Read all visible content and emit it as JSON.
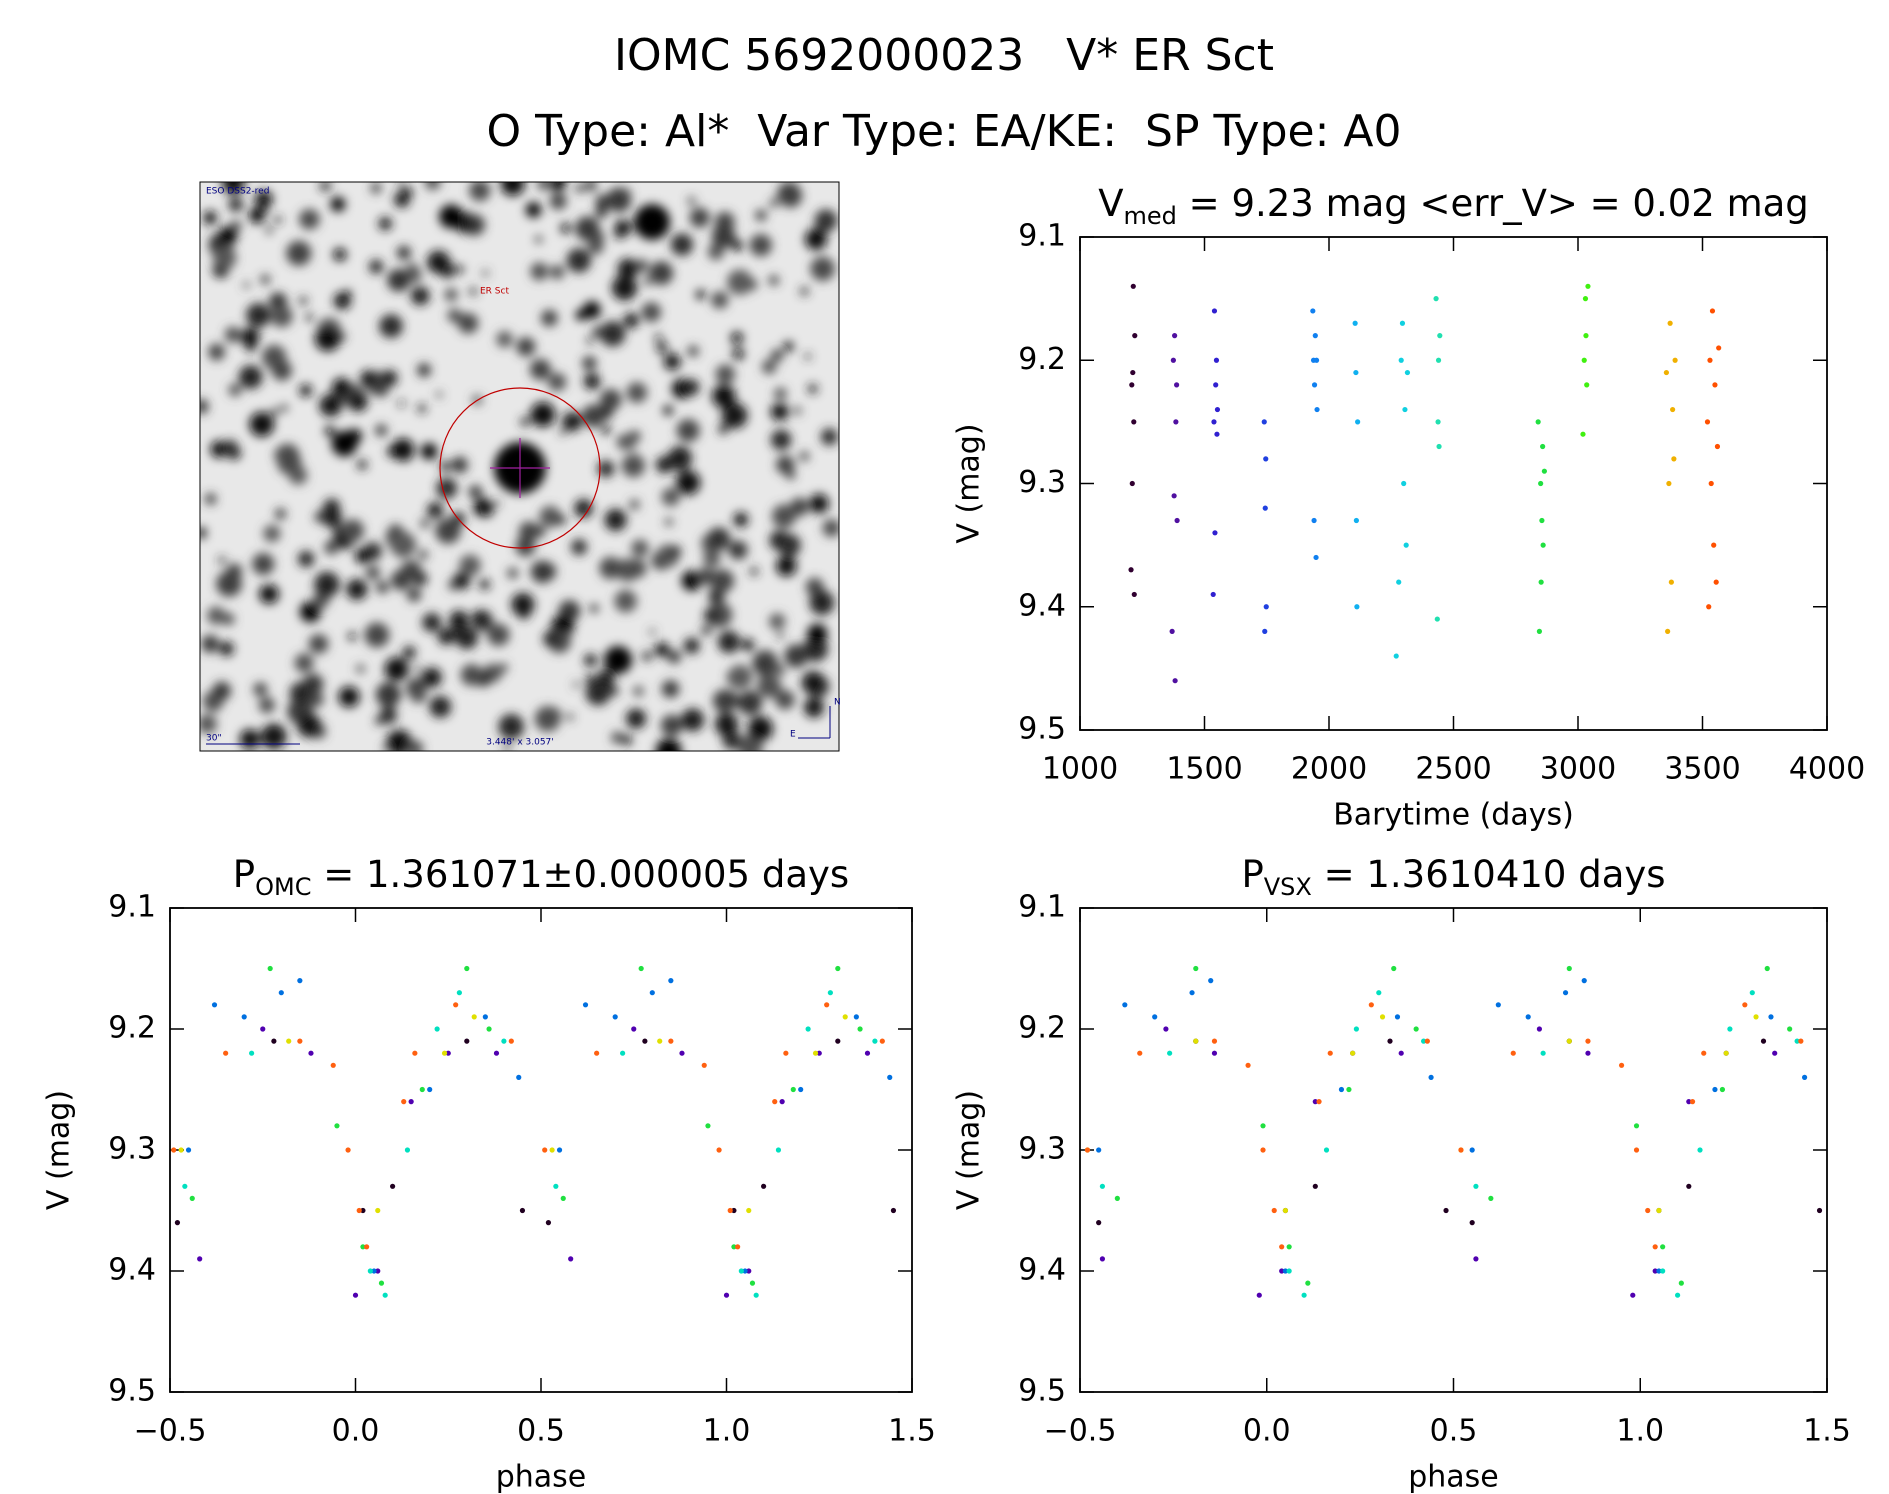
{
  "header": {
    "title": "IOMC 5692000023   V* ER Sct",
    "subtitle": "O Type: Al*  Var Type: EA/KE:  SP Type: A0"
  },
  "image": {
    "survey": "ESO DSS2-red",
    "target": "ER Sct",
    "scale": "30\"",
    "size": "3.448' x 3.057'",
    "north": "N",
    "east": "E"
  },
  "chart_data": [
    {
      "type": "scatter",
      "title": {
        "main": "V",
        "sub": "med",
        "rest": " = 9.23 mag <err_V> = 0.02 mag"
      },
      "xlabel": "Barytime (days)",
      "ylabel": "V (mag)",
      "xlim": [
        1000,
        4000
      ],
      "ylim": [
        9.5,
        9.1
      ],
      "xticks": [
        1000,
        1500,
        2000,
        2500,
        3000,
        3500,
        4000
      ],
      "yticks": [
        9.1,
        9.2,
        9.3,
        9.4,
        9.5
      ],
      "series": [
        {
          "color": "#300030",
          "x": [
            1205,
            1208,
            1210,
            1212,
            1214,
            1216,
            1218,
            1220
          ],
          "values": [
            9.37,
            9.22,
            9.3,
            9.21,
            9.14,
            9.25,
            9.39,
            9.18
          ]
        },
        {
          "color": "#5010a0",
          "x": [
            1370,
            1375,
            1378,
            1380,
            1382,
            1385,
            1388,
            1390
          ],
          "values": [
            9.42,
            9.2,
            9.31,
            9.18,
            9.46,
            9.25,
            9.22,
            9.33
          ]
        },
        {
          "color": "#3020d0",
          "x": [
            1535,
            1538,
            1540,
            1542,
            1545,
            1548,
            1550,
            1552
          ],
          "values": [
            9.39,
            9.25,
            9.16,
            9.34,
            9.22,
            9.2,
            9.26,
            9.24
          ]
        },
        {
          "color": "#2040e0",
          "x": [
            1740,
            1742,
            1744,
            1746,
            1748
          ],
          "values": [
            9.25,
            9.42,
            9.32,
            9.28,
            9.4
          ]
        },
        {
          "color": "#1080f0",
          "x": [
            1935,
            1938,
            1940,
            1942,
            1945,
            1948,
            1950,
            1952
          ],
          "values": [
            9.16,
            9.2,
            9.33,
            9.22,
            9.18,
            9.36,
            9.2,
            9.24
          ]
        },
        {
          "color": "#10b0f0",
          "x": [
            2105,
            2108,
            2110,
            2112,
            2115
          ],
          "values": [
            9.17,
            9.21,
            9.33,
            9.4,
            9.25
          ]
        },
        {
          "color": "#10d0e0",
          "x": [
            2270,
            2280,
            2290,
            2295,
            2300,
            2305,
            2310,
            2315
          ],
          "values": [
            9.44,
            9.38,
            9.2,
            9.17,
            9.3,
            9.24,
            9.35,
            9.21
          ]
        },
        {
          "color": "#20e0b0",
          "x": [
            2430,
            2435,
            2438,
            2440,
            2442,
            2445
          ],
          "values": [
            9.15,
            9.41,
            9.25,
            9.2,
            9.27,
            9.18
          ]
        },
        {
          "color": "#20e040",
          "x": [
            2840,
            2845,
            2850,
            2852,
            2855,
            2858,
            2860,
            2865
          ],
          "values": [
            9.25,
            9.42,
            9.3,
            9.38,
            9.33,
            9.27,
            9.35,
            9.29
          ]
        },
        {
          "color": "#40f010",
          "x": [
            3020,
            3025,
            3030,
            3032,
            3035,
            3040
          ],
          "values": [
            9.26,
            9.2,
            9.15,
            9.18,
            9.22,
            9.14
          ]
        },
        {
          "color": "#f0b000",
          "x": [
            3355,
            3360,
            3365,
            3370,
            3375,
            3380,
            3385,
            3390
          ],
          "values": [
            9.21,
            9.42,
            9.3,
            9.17,
            9.38,
            9.24,
            9.28,
            9.2
          ]
        },
        {
          "color": "#ff5000",
          "x": [
            3520,
            3525,
            3530,
            3535,
            3540,
            3545,
            3550,
            3555,
            3560,
            3565
          ],
          "values": [
            9.25,
            9.4,
            9.2,
            9.3,
            9.16,
            9.35,
            9.22,
            9.38,
            9.27,
            9.19
          ]
        }
      ]
    },
    {
      "type": "scatter",
      "title": {
        "main": "P",
        "sub": "OMC",
        "rest": " = 1.361071±0.000005 days"
      },
      "xlabel": "phase",
      "ylabel": "V (mag)",
      "xlim": [
        -0.5,
        1.5
      ],
      "ylim": [
        9.5,
        9.1
      ],
      "xticks": [
        {
          "value": -0.5,
          "label": "−0.5"
        },
        {
          "value": 0,
          "label": "0.0"
        },
        0.5,
        {
          "value": 1,
          "label": "1.0"
        },
        1.5
      ],
      "yticks": [
        9.1,
        9.2,
        9.3,
        9.4,
        9.5
      ],
      "series": [
        {
          "color": "#200020",
          "x": [
            -0.48,
            -0.22,
            0.02,
            0.1,
            0.3,
            0.45,
            0.52,
            0.78,
            1.02,
            1.1,
            1.3,
            1.45
          ],
          "values": [
            9.36,
            9.21,
            9.35,
            9.33,
            9.21,
            9.35,
            9.36,
            9.21,
            9.35,
            9.33,
            9.21,
            9.35
          ]
        },
        {
          "color": "#5000b0",
          "x": [
            -0.42,
            -0.25,
            -0.12,
            0,
            0.06,
            0.15,
            0.25,
            0.38,
            0.58,
            0.75,
            0.88,
            1,
            1.06,
            1.15,
            1.25,
            1.38
          ],
          "values": [
            9.39,
            9.2,
            9.22,
            9.42,
            9.4,
            9.26,
            9.22,
            9.22,
            9.39,
            9.2,
            9.22,
            9.42,
            9.4,
            9.26,
            9.22,
            9.22
          ]
        },
        {
          "color": "#0070e0",
          "x": [
            -0.45,
            -0.38,
            -0.3,
            -0.2,
            -0.15,
            0.05,
            0.2,
            0.35,
            0.44,
            0.55,
            0.62,
            0.7,
            0.8,
            0.85,
            1.05,
            1.2,
            1.35,
            1.44
          ],
          "values": [
            9.3,
            9.18,
            9.19,
            9.17,
            9.16,
            9.4,
            9.25,
            9.19,
            9.24,
            9.3,
            9.18,
            9.19,
            9.17,
            9.16,
            9.4,
            9.25,
            9.19,
            9.24
          ]
        },
        {
          "color": "#00e0c0",
          "x": [
            -0.46,
            -0.28,
            0.04,
            0.08,
            0.14,
            0.22,
            0.28,
            0.4,
            0.54,
            0.72,
            1.04,
            1.08,
            1.14,
            1.22,
            1.28,
            1.4
          ],
          "values": [
            9.33,
            9.22,
            9.4,
            9.42,
            9.3,
            9.2,
            9.17,
            9.21,
            9.33,
            9.22,
            9.4,
            9.42,
            9.3,
            9.2,
            9.17,
            9.21
          ]
        },
        {
          "color": "#20e040",
          "x": [
            -0.44,
            -0.23,
            -0.05,
            0.02,
            0.07,
            0.18,
            0.3,
            0.36,
            0.56,
            0.77,
            0.95,
            1.02,
            1.07,
            1.18,
            1.3,
            1.36
          ],
          "values": [
            9.34,
            9.15,
            9.28,
            9.38,
            9.41,
            9.25,
            9.15,
            9.2,
            9.34,
            9.15,
            9.28,
            9.38,
            9.41,
            9.25,
            9.15,
            9.2
          ]
        },
        {
          "color": "#e0e000",
          "x": [
            -0.47,
            -0.18,
            0.06,
            0.24,
            0.32,
            0.53,
            0.82,
            1.06,
            1.24,
            1.32
          ],
          "values": [
            9.3,
            9.21,
            9.35,
            9.22,
            9.19,
            9.3,
            9.21,
            9.35,
            9.22,
            9.19
          ]
        },
        {
          "color": "#ff6010",
          "x": [
            -0.49,
            -0.35,
            -0.15,
            -0.06,
            -0.02,
            0.01,
            0.03,
            0.13,
            0.16,
            0.27,
            0.42,
            0.51,
            0.65,
            0.85,
            0.94,
            0.98,
            1.01,
            1.03,
            1.13,
            1.16,
            1.27,
            1.42
          ],
          "values": [
            9.3,
            9.22,
            9.21,
            9.23,
            9.3,
            9.35,
            9.38,
            9.26,
            9.22,
            9.18,
            9.21,
            9.3,
            9.22,
            9.21,
            9.23,
            9.3,
            9.35,
            9.38,
            9.26,
            9.22,
            9.18,
            9.21
          ]
        }
      ]
    },
    {
      "type": "scatter",
      "title": {
        "main": "P",
        "sub": "VSX",
        "rest": " = 1.3610410 days"
      },
      "xlabel": "phase",
      "ylabel": "V (mag)",
      "xlim": [
        -0.5,
        1.5
      ],
      "ylim": [
        9.5,
        9.1
      ],
      "xticks": [
        {
          "value": -0.5,
          "label": "−0.5"
        },
        {
          "value": 0,
          "label": "0.0"
        },
        0.5,
        {
          "value": 1,
          "label": "1.0"
        },
        1.5
      ],
      "yticks": [
        9.1,
        9.2,
        9.3,
        9.4,
        9.5
      ],
      "series": [
        {
          "color": "#200020",
          "x": [
            -0.45,
            -0.19,
            0.05,
            0.13,
            0.33,
            0.48,
            0.55,
            0.81,
            1.05,
            1.13,
            1.33,
            1.48
          ],
          "values": [
            9.36,
            9.21,
            9.35,
            9.33,
            9.21,
            9.35,
            9.36,
            9.21,
            9.35,
            9.33,
            9.21,
            9.35
          ]
        },
        {
          "color": "#5000b0",
          "x": [
            -0.44,
            -0.27,
            -0.14,
            -0.02,
            0.04,
            0.13,
            0.23,
            0.36,
            0.56,
            0.73,
            0.86,
            0.98,
            1.04,
            1.13,
            1.23,
            1.36
          ],
          "values": [
            9.39,
            9.2,
            9.22,
            9.42,
            9.4,
            9.26,
            9.22,
            9.22,
            9.39,
            9.2,
            9.22,
            9.42,
            9.4,
            9.26,
            9.22,
            9.22
          ]
        },
        {
          "color": "#0070e0",
          "x": [
            -0.45,
            -0.38,
            -0.3,
            -0.2,
            -0.15,
            0.05,
            0.2,
            0.35,
            0.44,
            0.55,
            0.62,
            0.7,
            0.8,
            0.85,
            1.05,
            1.2,
            1.35,
            1.44
          ],
          "values": [
            9.3,
            9.18,
            9.19,
            9.17,
            9.16,
            9.4,
            9.25,
            9.19,
            9.24,
            9.3,
            9.18,
            9.19,
            9.17,
            9.16,
            9.4,
            9.25,
            9.19,
            9.24
          ]
        },
        {
          "color": "#00e0c0",
          "x": [
            -0.44,
            -0.26,
            0.06,
            0.1,
            0.16,
            0.24,
            0.3,
            0.42,
            0.56,
            0.74,
            1.06,
            1.1,
            1.16,
            1.24,
            1.3,
            1.42
          ],
          "values": [
            9.33,
            9.22,
            9.4,
            9.42,
            9.3,
            9.2,
            9.17,
            9.21,
            9.33,
            9.22,
            9.4,
            9.42,
            9.3,
            9.2,
            9.17,
            9.21
          ]
        },
        {
          "color": "#20e040",
          "x": [
            -0.4,
            -0.19,
            -0.01,
            0.06,
            0.11,
            0.22,
            0.34,
            0.4,
            0.6,
            0.81,
            0.99,
            1.06,
            1.11,
            1.22,
            1.34,
            1.4
          ],
          "values": [
            9.34,
            9.15,
            9.28,
            9.38,
            9.41,
            9.25,
            9.15,
            9.2,
            9.34,
            9.15,
            9.28,
            9.38,
            9.41,
            9.25,
            9.15,
            9.2
          ]
        },
        {
          "color": "#e0e000",
          "x": [
            -0.48,
            -0.19,
            0.05,
            0.23,
            0.31,
            0.52,
            0.81,
            1.05,
            1.23,
            1.31
          ],
          "values": [
            9.3,
            9.21,
            9.35,
            9.22,
            9.19,
            9.3,
            9.21,
            9.35,
            9.22,
            9.19
          ]
        },
        {
          "color": "#ff6010",
          "x": [
            -0.48,
            -0.34,
            -0.14,
            -0.05,
            -0.01,
            0.02,
            0.04,
            0.14,
            0.17,
            0.28,
            0.43,
            0.52,
            0.66,
            0.86,
            0.95,
            0.99,
            1.02,
            1.04,
            1.14,
            1.17,
            1.28,
            1.43
          ],
          "values": [
            9.3,
            9.22,
            9.21,
            9.23,
            9.3,
            9.35,
            9.38,
            9.26,
            9.22,
            9.18,
            9.21,
            9.3,
            9.22,
            9.21,
            9.23,
            9.3,
            9.35,
            9.38,
            9.26,
            9.22,
            9.18,
            9.21
          ]
        }
      ]
    }
  ]
}
